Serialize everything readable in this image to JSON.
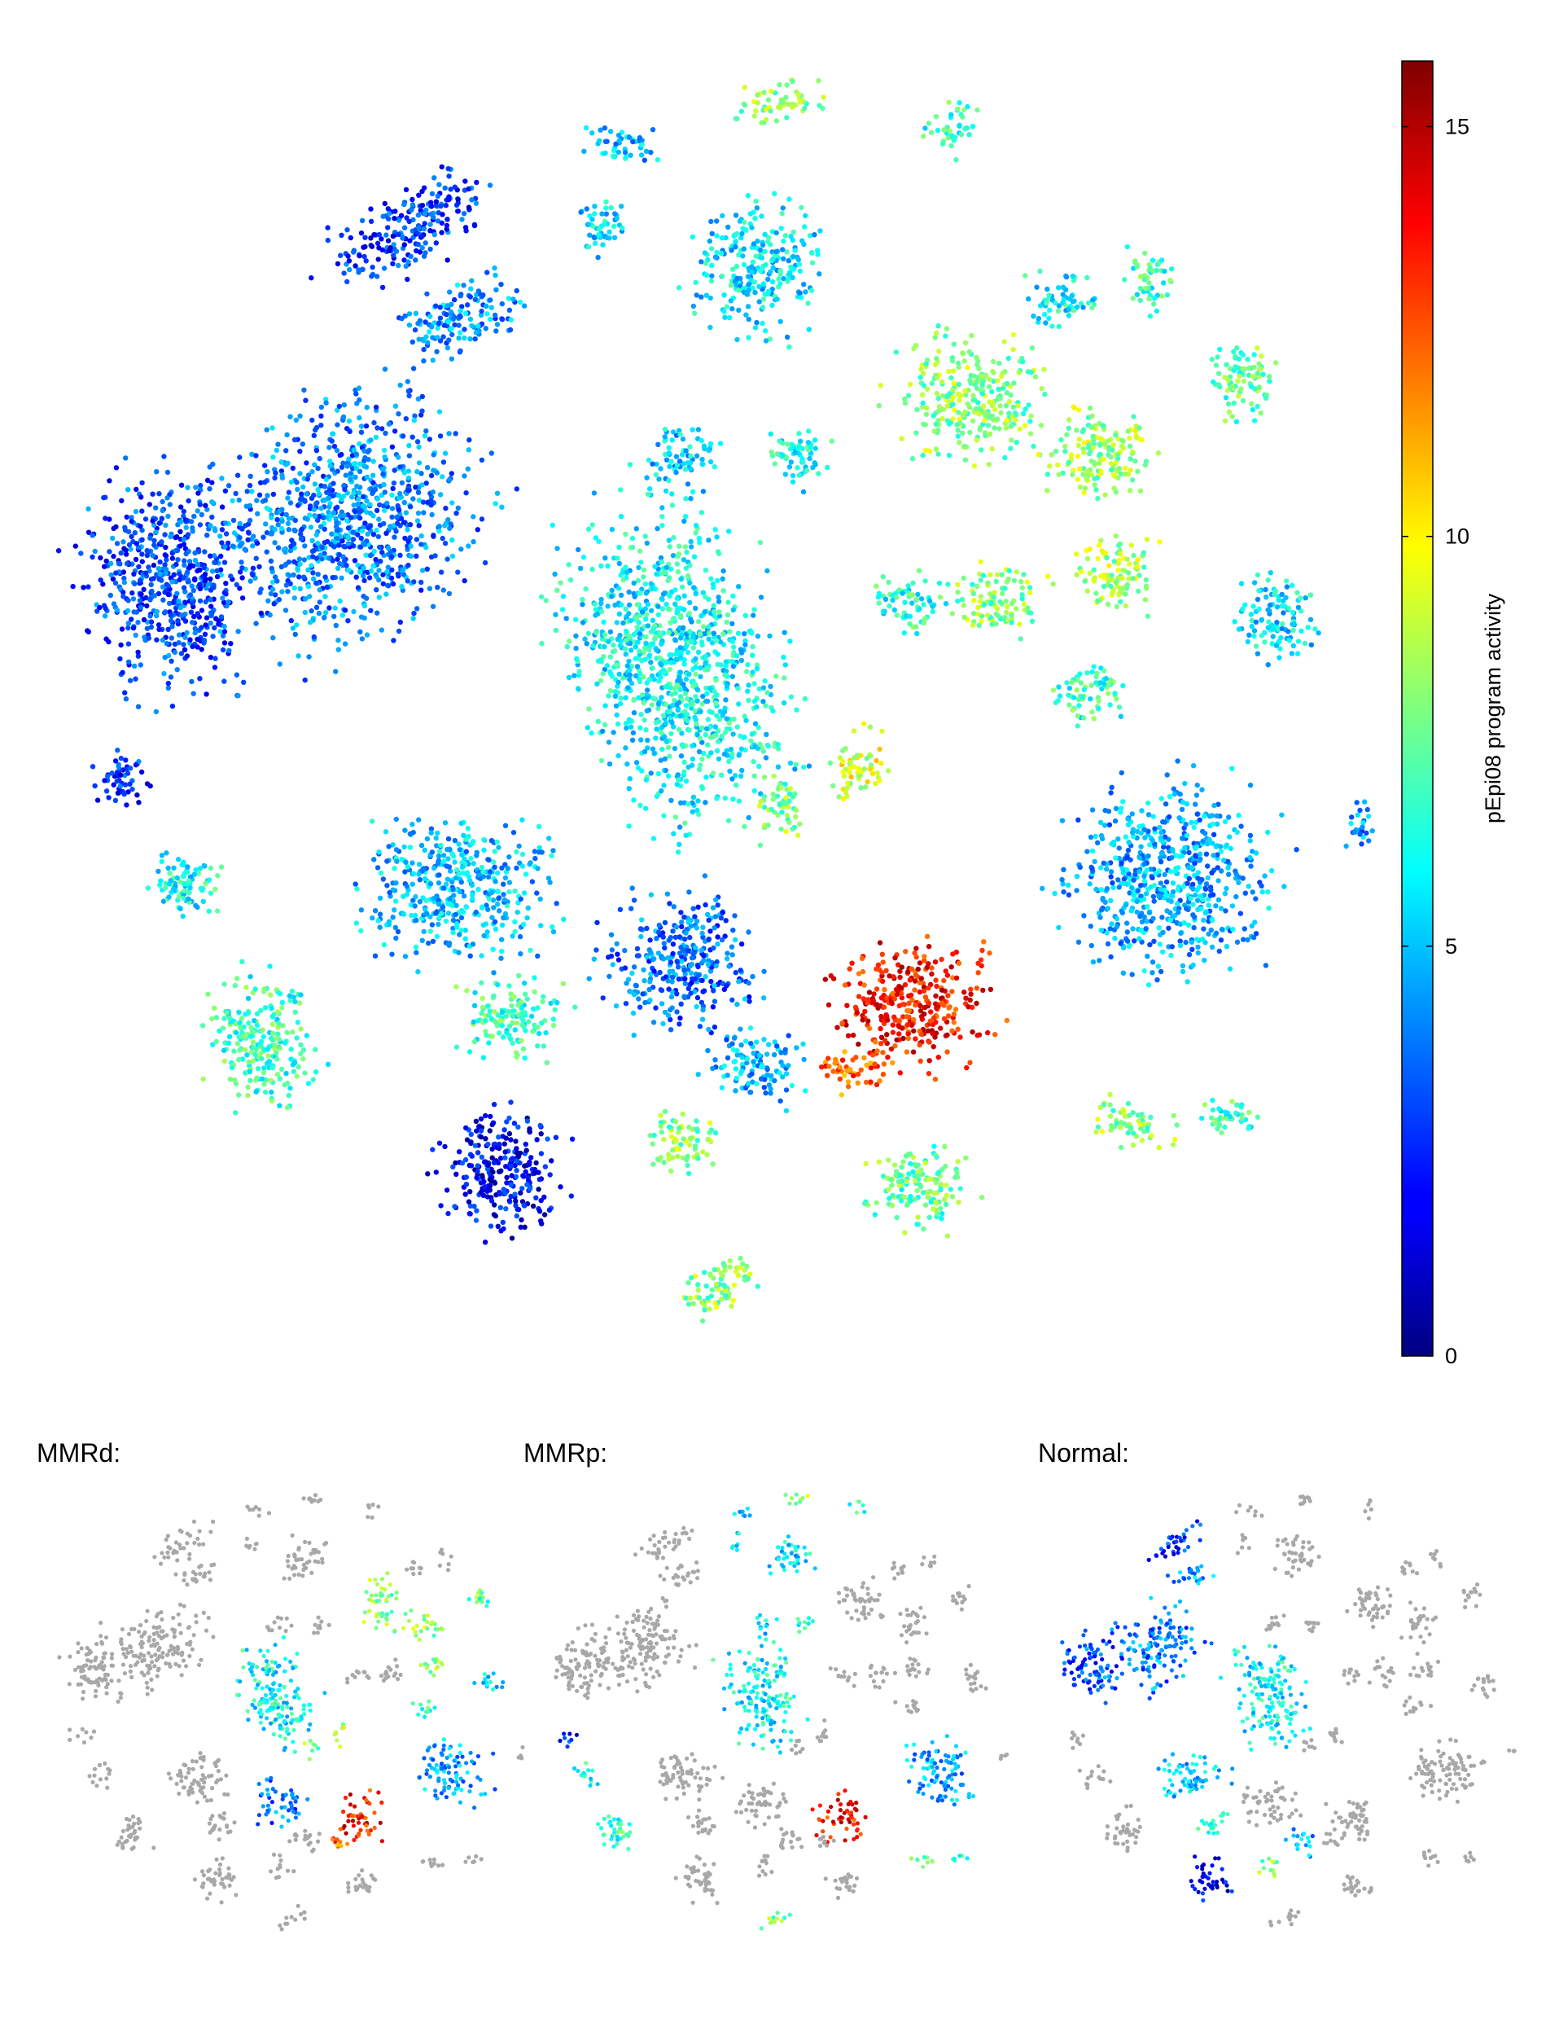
{
  "chart_data": [
    {
      "type": "scatter",
      "title": "",
      "xlabel": "",
      "ylabel": "",
      "colorbar": {
        "label": "pEpi08 program activity",
        "range": [
          0,
          15.8
        ],
        "ticks": [
          0,
          5,
          10,
          15
        ],
        "tick_labels": [
          "0",
          "5",
          "10",
          "15"
        ],
        "colormap": "jet",
        "position": "right"
      },
      "axes_visible": false,
      "grid": false
    },
    {
      "type": "scatter",
      "title": "MMRd:",
      "background_color": "#a8a8a8",
      "axes_visible": false
    },
    {
      "type": "scatter",
      "title": "MMRp:",
      "background_color": "#a8a8a8",
      "axes_visible": false
    },
    {
      "type": "scatter",
      "title": "Normal:",
      "background_color": "#a8a8a8",
      "axes_visible": false
    }
  ],
  "colors": {
    "jet_low": "#00007f",
    "jet_mid": "#7fff7f",
    "jet_high": "#7f0000",
    "unselected_cells": "#a8a8a8"
  }
}
